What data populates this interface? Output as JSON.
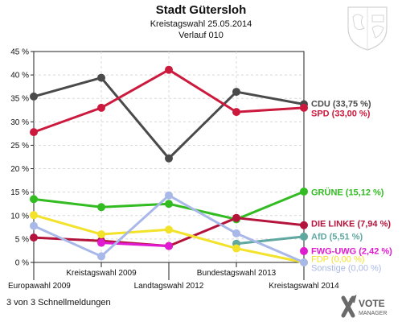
{
  "header": {
    "title": "Stadt Gütersloh",
    "subtitle": "Kreistagswahl 25.05.2014",
    "subtitle2": "Verlauf 010"
  },
  "footer": {
    "status": "3 von 3 Schnellmeldungen"
  },
  "logo": {
    "line1": "VOTE",
    "line2": "MANAGER"
  },
  "chart_data": {
    "type": "line",
    "categories": [
      "Europawahl 2009",
      "Kreistagswahl 2009",
      "Landtagswahl 2012",
      "Bundestagswahl 2013",
      "Kreistagswahl 2014"
    ],
    "ylim": [
      0,
      45
    ],
    "yticks": [
      "0 %",
      "5 %",
      "10 %",
      "15 %",
      "20 %",
      "25 %",
      "30 %",
      "35 %",
      "40 %",
      "45 %"
    ],
    "grid": true,
    "series": [
      {
        "name": "CDU",
        "label": "CDU (33,75 %)",
        "color": "#4a4a4a",
        "values": [
          35.4,
          39.4,
          22.2,
          36.4,
          33.75
        ]
      },
      {
        "name": "SPD",
        "label": "SPD (33,00 %)",
        "color": "#cc1a3e",
        "values": [
          27.8,
          33.0,
          41.1,
          32.1,
          33.0
        ]
      },
      {
        "name": "GRÜNE",
        "label": "GRÜNE (15,12 %)",
        "color": "#33bb22",
        "values": [
          13.5,
          11.8,
          12.5,
          9.2,
          15.12
        ]
      },
      {
        "name": "DIE LINKE",
        "label": "DIE LINKE (7,94 %)",
        "color": "#b4143c",
        "values": [
          5.3,
          4.6,
          3.5,
          9.5,
          7.94
        ]
      },
      {
        "name": "AfD",
        "label": "AfD (5,51 %)",
        "color": "#5fa8a0",
        "values": [
          null,
          null,
          null,
          4.0,
          5.51
        ]
      },
      {
        "name": "FWG-UWG",
        "label": "FWG-UWG (2,42 %)",
        "color": "#e01ad0",
        "values": [
          null,
          4.2,
          3.5,
          null,
          2.42
        ]
      },
      {
        "name": "FDP",
        "label": "FDP (0,00 %)",
        "color": "#f2e22a",
        "values": [
          10.1,
          6.0,
          7.0,
          3.0,
          0.0
        ]
      },
      {
        "name": "Sonstige",
        "label": "Sonstige (0,00 %)",
        "color": "#a8b8e8",
        "values": [
          7.8,
          1.3,
          14.3,
          6.2,
          0.0
        ]
      }
    ]
  }
}
